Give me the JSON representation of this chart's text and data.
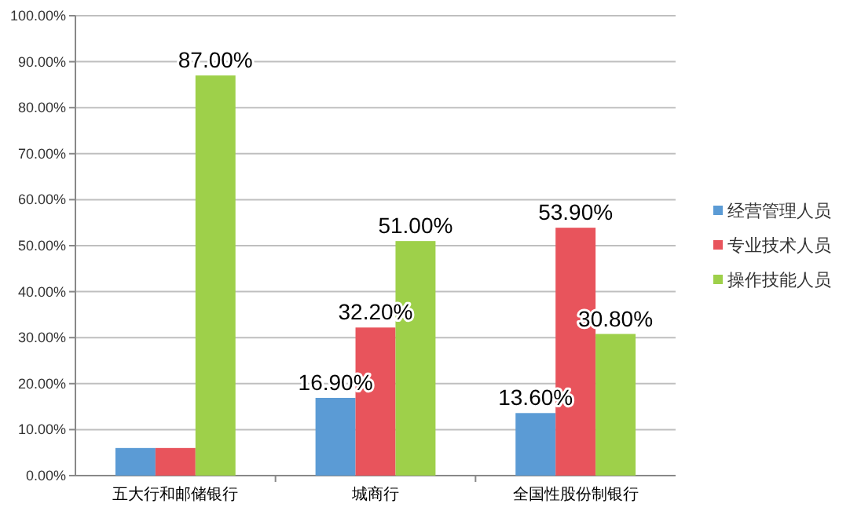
{
  "chart_data": {
    "type": "bar",
    "categories": [
      "五大行和邮储银行",
      "城商行",
      "全国性股份制银行"
    ],
    "series": [
      {
        "name": "经营管理人员",
        "color": "#5b9bd5",
        "values": [
          6,
          16.9,
          13.6
        ],
        "value_labels": [
          null,
          "16.90%",
          "13.60%"
        ]
      },
      {
        "name": "专业技术人员",
        "color": "#e8545c",
        "values": [
          6,
          32.2,
          53.9
        ],
        "value_labels": [
          null,
          "32.20%",
          "53.90%"
        ]
      },
      {
        "name": "操作技能人员",
        "color": "#9ed04a",
        "values": [
          87,
          51,
          30.8
        ],
        "value_labels": [
          "87.00%",
          "51.00%",
          "30.80%"
        ]
      }
    ],
    "ylim": [
      0,
      100
    ],
    "yticks": [
      {
        "value": 0,
        "label": "0.00%"
      },
      {
        "value": 10,
        "label": "10.00%"
      },
      {
        "value": 20,
        "label": "20.00%"
      },
      {
        "value": 30,
        "label": "30.00%"
      },
      {
        "value": 40,
        "label": "40.00%"
      },
      {
        "value": 50,
        "label": "50.00%"
      },
      {
        "value": 60,
        "label": "60.00%"
      },
      {
        "value": 70,
        "label": "70.00%"
      },
      {
        "value": 80,
        "label": "80.00%"
      },
      {
        "value": 90,
        "label": "90.00%"
      },
      {
        "value": 100,
        "label": "100.00%"
      }
    ],
    "grid": "y",
    "legend": "right"
  }
}
